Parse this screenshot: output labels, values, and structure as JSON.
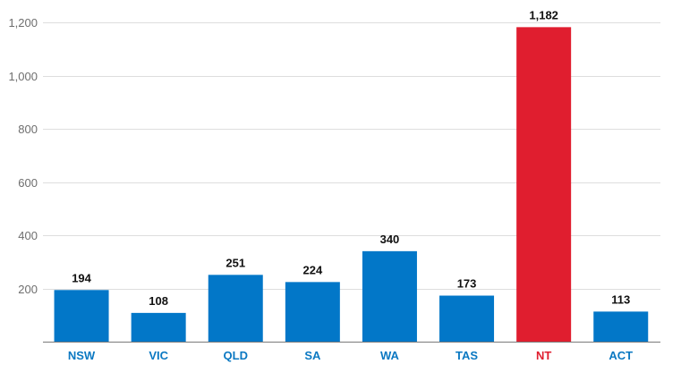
{
  "chart_data": {
    "type": "bar",
    "title": "",
    "xlabel": "",
    "ylabel": "",
    "ylim": [
      0,
      1200
    ],
    "y_ticks": [
      {
        "value": 200,
        "label": "200"
      },
      {
        "value": 400,
        "label": "400"
      },
      {
        "value": 600,
        "label": "600"
      },
      {
        "value": 800,
        "label": "800"
      },
      {
        "value": 1000,
        "label": "1,000"
      },
      {
        "value": 1200,
        "label": "1,200"
      }
    ],
    "grid": true,
    "legend": "none",
    "categories": [
      "NSW",
      "VIC",
      "QLD",
      "SA",
      "WA",
      "TAS",
      "NT",
      "ACT"
    ],
    "values": [
      194,
      108,
      251,
      224,
      340,
      173,
      1182,
      113
    ],
    "value_labels": [
      "194",
      "108",
      "251",
      "224",
      "340",
      "173",
      "1,182",
      "113"
    ],
    "highlight_category": "NT"
  },
  "colors": {
    "bar": "#0277c8",
    "highlight": "#e01e2f",
    "category_label": "#0a78c2",
    "highlight_label": "#e01e2f"
  }
}
